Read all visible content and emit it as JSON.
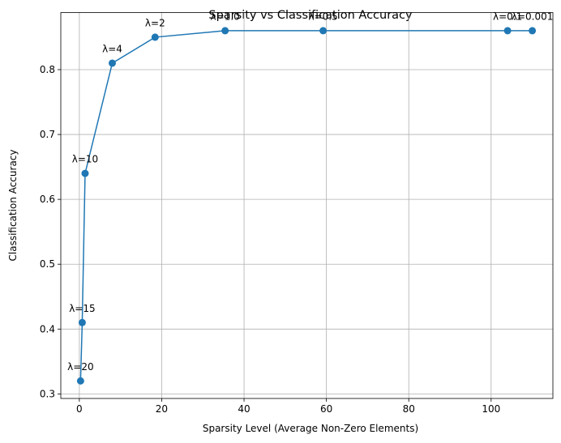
{
  "chart_data": {
    "type": "line",
    "title": "Sparsity vs Classification Accuracy",
    "xlabel": "Sparsity Level (Average Non-Zero Elements)",
    "ylabel": "Classification Accuracy",
    "xlim": [
      -4.5,
      115
    ],
    "ylim": [
      0.293,
      0.888
    ],
    "xticks": [
      0,
      20,
      40,
      60,
      80,
      100
    ],
    "yticks": [
      0.3,
      0.4,
      0.5,
      0.6,
      0.7,
      0.8
    ],
    "xtick_labels": [
      "0",
      "20",
      "40",
      "60",
      "80",
      "100"
    ],
    "ytick_labels": [
      "0.3",
      "0.4",
      "0.5",
      "0.6",
      "0.7",
      "0.8"
    ],
    "grid": true,
    "color": "#1f77b4",
    "points": [
      {
        "x": 0.3,
        "y": 0.32,
        "label": "λ=20"
      },
      {
        "x": 0.7,
        "y": 0.41,
        "label": "λ=15"
      },
      {
        "x": 1.4,
        "y": 0.64,
        "label": "λ=10"
      },
      {
        "x": 8.0,
        "y": 0.81,
        "label": "λ=4"
      },
      {
        "x": 18.4,
        "y": 0.85,
        "label": "λ=2"
      },
      {
        "x": 35.4,
        "y": 0.86,
        "label": "λ=1.0"
      },
      {
        "x": 59.2,
        "y": 0.86,
        "label": "λ=0.5"
      },
      {
        "x": 104.0,
        "y": 0.86,
        "label": "λ=0.1"
      },
      {
        "x": 110.0,
        "y": 0.86,
        "label": "λ=0.001"
      }
    ]
  }
}
